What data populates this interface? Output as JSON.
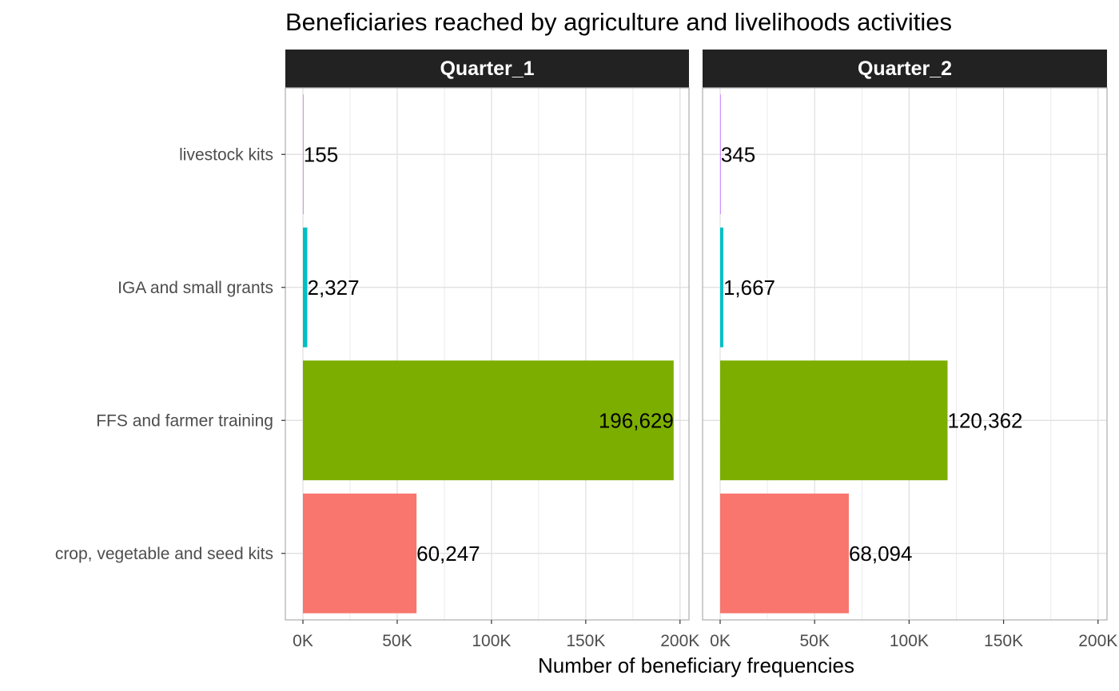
{
  "chart_data": {
    "type": "bar",
    "orientation": "horizontal",
    "title": "Beneficiaries reached by agriculture and livelihoods activities",
    "xlabel": "Number of beneficiary frequencies",
    "ylabel": "",
    "xlim": [
      0,
      200000
    ],
    "x_ticks": [
      0,
      50000,
      100000,
      150000,
      200000
    ],
    "x_tick_labels": [
      "0K",
      "50K",
      "100K",
      "150K",
      "200K"
    ],
    "grid": true,
    "categories": [
      "livestock kits",
      "IGA and small grants",
      "FFS and farmer training",
      "crop, vegetable and seed kits"
    ],
    "colors": {
      "livestock kits": "#C77CFF",
      "IGA and small grants": "#00BFC4",
      "FFS and farmer training": "#7CAE00",
      "crop, vegetable and seed kits": "#F8766D"
    },
    "facets": [
      {
        "name": "Quarter_1",
        "values": [
          155,
          2327,
          196629,
          60247
        ],
        "labels": [
          "155",
          "2,327",
          "196,629",
          "60,247"
        ]
      },
      {
        "name": "Quarter_2",
        "values": [
          345,
          1667,
          120362,
          68094
        ],
        "labels": [
          "345",
          "1,667",
          "120,362",
          "68,094"
        ]
      }
    ]
  }
}
